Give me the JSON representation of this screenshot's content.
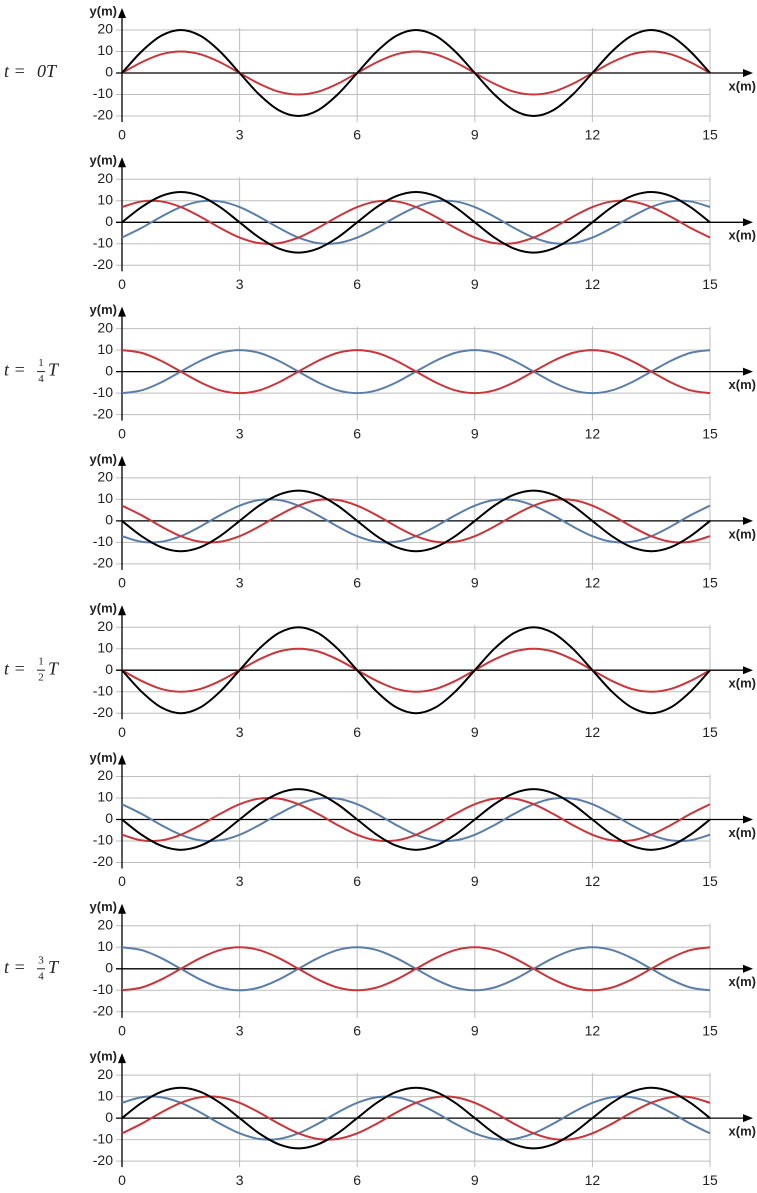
{
  "chart_data": [
    {
      "type": "line",
      "time_label": {
        "before": "t =",
        "after": "0T"
      },
      "xlabel": "x(m)",
      "ylabel": "y(m)",
      "xlim": [
        0,
        15
      ],
      "ylim": [
        -20,
        20
      ],
      "xticks": [
        0,
        3,
        6,
        9,
        12,
        15
      ],
      "yticks": [
        -20,
        -10,
        0,
        10,
        20
      ],
      "grid": true,
      "x": [
        0,
        0.5,
        1,
        1.5,
        2,
        2.5,
        3,
        3.5,
        4,
        4.5,
        5,
        5.5,
        6,
        6.5,
        7,
        7.5,
        8,
        8.5,
        9,
        9.5,
        10,
        10.5,
        11,
        11.5,
        12,
        12.5,
        13,
        13.5,
        14,
        14.5,
        15
      ],
      "series": [
        {
          "color": "#c8363b",
          "values": [
            0,
            5,
            8.7,
            10,
            8.7,
            5,
            0,
            -5,
            -8.7,
            -10,
            -8.7,
            -5,
            0,
            5,
            8.7,
            10,
            8.7,
            5,
            0,
            -5,
            -8.7,
            -10,
            -8.7,
            -5,
            0,
            5,
            8.7,
            10,
            8.7,
            5,
            0
          ]
        },
        {
          "color": "#000000",
          "values": [
            0,
            10,
            17.3,
            20,
            17.3,
            10,
            0,
            -10,
            -17.3,
            -20,
            -17.3,
            -10,
            0,
            10,
            17.3,
            20,
            17.3,
            10,
            0,
            -10,
            -17.3,
            -20,
            -17.3,
            -10,
            0,
            10,
            17.3,
            20,
            17.3,
            10,
            0
          ]
        }
      ]
    },
    {
      "type": "line",
      "xlabel": "x(m)",
      "ylabel": "y(m)",
      "xlim": [
        0,
        15
      ],
      "ylim": [
        -20,
        20
      ],
      "xticks": [
        0,
        3,
        6,
        9,
        12,
        15
      ],
      "yticks": [
        -20,
        -10,
        0,
        10,
        20
      ],
      "grid": true,
      "x": [
        0,
        0.5,
        1,
        1.5,
        2,
        2.5,
        3,
        3.5,
        4,
        4.5,
        5,
        5.5,
        6,
        6.5,
        7,
        7.5,
        8,
        8.5,
        9,
        9.5,
        10,
        10.5,
        11,
        11.5,
        12,
        12.5,
        13,
        13.5,
        14,
        14.5,
        15
      ],
      "series": [
        {
          "color": "#5b7ea8",
          "values": [
            -7.1,
            -2.6,
            2.6,
            7.1,
            9.7,
            9.7,
            7.1,
            2.6,
            -2.6,
            -7.1,
            -9.7,
            -9.7,
            -7.1,
            -2.6,
            2.6,
            7.1,
            9.7,
            9.7,
            7.1,
            2.6,
            -2.6,
            -7.1,
            -9.7,
            -9.7,
            -7.1,
            -2.6,
            2.6,
            7.1,
            9.7,
            9.7,
            7.1
          ]
        },
        {
          "color": "#c8363b",
          "values": [
            7.1,
            9.7,
            9.7,
            7.1,
            2.6,
            -2.6,
            -7.1,
            -9.7,
            -9.7,
            -7.1,
            -2.6,
            2.6,
            7.1,
            9.7,
            9.7,
            7.1,
            2.6,
            -2.6,
            -7.1,
            -9.7,
            -9.7,
            -7.1,
            -2.6,
            2.6,
            7.1,
            9.7,
            9.7,
            7.1,
            2.6,
            -2.6,
            -7.1
          ]
        },
        {
          "color": "#000000",
          "values": [
            0,
            7.1,
            12.2,
            14.1,
            12.2,
            7.1,
            0,
            -7.1,
            -12.2,
            -14.1,
            -12.2,
            -7.1,
            0,
            7.1,
            12.2,
            14.1,
            12.2,
            7.1,
            0,
            -7.1,
            -12.2,
            -14.1,
            -12.2,
            -7.1,
            0,
            7.1,
            12.2,
            14.1,
            12.2,
            7.1,
            0
          ]
        }
      ]
    },
    {
      "type": "line",
      "time_label": {
        "before": "t =",
        "numerator": "1",
        "denominator": "4",
        "after": "T"
      },
      "xlabel": "x(m)",
      "ylabel": "y(m)",
      "xlim": [
        0,
        15
      ],
      "ylim": [
        -20,
        20
      ],
      "xticks": [
        0,
        3,
        6,
        9,
        12,
        15
      ],
      "yticks": [
        -20,
        -10,
        0,
        10,
        20
      ],
      "grid": true,
      "x": [
        0,
        0.5,
        1,
        1.5,
        2,
        2.5,
        3,
        3.5,
        4,
        4.5,
        5,
        5.5,
        6,
        6.5,
        7,
        7.5,
        8,
        8.5,
        9,
        9.5,
        10,
        10.5,
        11,
        11.5,
        12,
        12.5,
        13,
        13.5,
        14,
        14.5,
        15
      ],
      "series": [
        {
          "color": "#5b7ea8",
          "values": [
            -10,
            -8.7,
            -5,
            0,
            5,
            8.7,
            10,
            8.7,
            5,
            0,
            -5,
            -8.7,
            -10,
            -8.7,
            -5,
            0,
            5,
            8.7,
            10,
            8.7,
            5,
            0,
            -5,
            -8.7,
            -10,
            -8.7,
            -5,
            0,
            5,
            8.7,
            10
          ]
        },
        {
          "color": "#c8363b",
          "values": [
            10,
            8.7,
            5,
            0,
            -5,
            -8.7,
            -10,
            -8.7,
            -5,
            0,
            5,
            8.7,
            10,
            8.7,
            5,
            0,
            -5,
            -8.7,
            -10,
            -8.7,
            -5,
            0,
            5,
            8.7,
            10,
            8.7,
            5,
            0,
            -5,
            -8.7,
            -10
          ]
        }
      ]
    },
    {
      "type": "line",
      "xlabel": "x(m)",
      "ylabel": "y(m)",
      "xlim": [
        0,
        15
      ],
      "ylim": [
        -20,
        20
      ],
      "xticks": [
        0,
        3,
        6,
        9,
        12,
        15
      ],
      "yticks": [
        -20,
        -10,
        0,
        10,
        20
      ],
      "grid": true,
      "x": [
        0,
        0.5,
        1,
        1.5,
        2,
        2.5,
        3,
        3.5,
        4,
        4.5,
        5,
        5.5,
        6,
        6.5,
        7,
        7.5,
        8,
        8.5,
        9,
        9.5,
        10,
        10.5,
        11,
        11.5,
        12,
        12.5,
        13,
        13.5,
        14,
        14.5,
        15
      ],
      "series": [
        {
          "color": "#5b7ea8",
          "values": [
            -7.1,
            -9.7,
            -9.7,
            -7.1,
            -2.6,
            2.6,
            7.1,
            9.7,
            9.7,
            7.1,
            2.6,
            -2.6,
            -7.1,
            -9.7,
            -9.7,
            -7.1,
            -2.6,
            2.6,
            7.1,
            9.7,
            9.7,
            7.1,
            2.6,
            -2.6,
            -7.1,
            -9.7,
            -9.7,
            -7.1,
            -2.6,
            2.6,
            7.1
          ]
        },
        {
          "color": "#c8363b",
          "values": [
            7.1,
            2.6,
            -2.6,
            -7.1,
            -9.7,
            -9.7,
            -7.1,
            -2.6,
            2.6,
            7.1,
            9.7,
            9.7,
            7.1,
            2.6,
            -2.6,
            -7.1,
            -9.7,
            -9.7,
            -7.1,
            -2.6,
            2.6,
            7.1,
            9.7,
            9.7,
            7.1,
            2.6,
            -2.6,
            -7.1,
            -9.7,
            -9.7,
            -7.1
          ]
        },
        {
          "color": "#000000",
          "values": [
            0,
            -7.1,
            -12.2,
            -14.1,
            -12.2,
            -7.1,
            0,
            7.1,
            12.2,
            14.1,
            12.2,
            7.1,
            0,
            -7.1,
            -12.2,
            -14.1,
            -12.2,
            -7.1,
            0,
            7.1,
            12.2,
            14.1,
            12.2,
            7.1,
            0,
            -7.1,
            -12.2,
            -14.1,
            -12.2,
            -7.1,
            0
          ]
        }
      ]
    },
    {
      "type": "line",
      "time_label": {
        "before": "t =",
        "numerator": "1",
        "denominator": "2",
        "after": "T"
      },
      "xlabel": "x(m)",
      "ylabel": "y(m)",
      "xlim": [
        0,
        15
      ],
      "ylim": [
        -20,
        20
      ],
      "xticks": [
        0,
        3,
        6,
        9,
        12,
        15
      ],
      "yticks": [
        -20,
        -10,
        0,
        10,
        20
      ],
      "grid": true,
      "x": [
        0,
        0.5,
        1,
        1.5,
        2,
        2.5,
        3,
        3.5,
        4,
        4.5,
        5,
        5.5,
        6,
        6.5,
        7,
        7.5,
        8,
        8.5,
        9,
        9.5,
        10,
        10.5,
        11,
        11.5,
        12,
        12.5,
        13,
        13.5,
        14,
        14.5,
        15
      ],
      "series": [
        {
          "color": "#c8363b",
          "values": [
            0,
            -5,
            -8.7,
            -10,
            -8.7,
            -5,
            0,
            5,
            8.7,
            10,
            8.7,
            5,
            0,
            -5,
            -8.7,
            -10,
            -8.7,
            -5,
            0,
            5,
            8.7,
            10,
            8.7,
            5,
            0,
            -5,
            -8.7,
            -10,
            -8.7,
            -5,
            0
          ]
        },
        {
          "color": "#000000",
          "values": [
            0,
            -10,
            -17.3,
            -20,
            -17.3,
            -10,
            0,
            10,
            17.3,
            20,
            17.3,
            10,
            0,
            -10,
            -17.3,
            -20,
            -17.3,
            -10,
            0,
            10,
            17.3,
            20,
            17.3,
            10,
            0,
            -10,
            -17.3,
            -20,
            -17.3,
            -10,
            0
          ]
        }
      ]
    },
    {
      "type": "line",
      "xlabel": "x(m)",
      "ylabel": "y(m)",
      "xlim": [
        0,
        15
      ],
      "ylim": [
        -20,
        20
      ],
      "xticks": [
        0,
        3,
        6,
        9,
        12,
        15
      ],
      "yticks": [
        -20,
        -10,
        0,
        10,
        20
      ],
      "grid": true,
      "x": [
        0,
        0.5,
        1,
        1.5,
        2,
        2.5,
        3,
        3.5,
        4,
        4.5,
        5,
        5.5,
        6,
        6.5,
        7,
        7.5,
        8,
        8.5,
        9,
        9.5,
        10,
        10.5,
        11,
        11.5,
        12,
        12.5,
        13,
        13.5,
        14,
        14.5,
        15
      ],
      "series": [
        {
          "color": "#5b7ea8",
          "values": [
            7.1,
            2.6,
            -2.6,
            -7.1,
            -9.7,
            -9.7,
            -7.1,
            -2.6,
            2.6,
            7.1,
            9.7,
            9.7,
            7.1,
            2.6,
            -2.6,
            -7.1,
            -9.7,
            -9.7,
            -7.1,
            -2.6,
            2.6,
            7.1,
            9.7,
            9.7,
            7.1,
            2.6,
            -2.6,
            -7.1,
            -9.7,
            -9.7,
            -7.1
          ]
        },
        {
          "color": "#c8363b",
          "values": [
            -7.1,
            -9.7,
            -9.7,
            -7.1,
            -2.6,
            2.6,
            7.1,
            9.7,
            9.7,
            7.1,
            2.6,
            -2.6,
            -7.1,
            -9.7,
            -9.7,
            -7.1,
            -2.6,
            2.6,
            7.1,
            9.7,
            9.7,
            7.1,
            2.6,
            -2.6,
            -7.1,
            -9.7,
            -9.7,
            -7.1,
            -2.6,
            2.6,
            7.1
          ]
        },
        {
          "color": "#000000",
          "values": [
            0,
            -7.1,
            -12.2,
            -14.1,
            -12.2,
            -7.1,
            0,
            7.1,
            12.2,
            14.1,
            12.2,
            7.1,
            0,
            -7.1,
            -12.2,
            -14.1,
            -12.2,
            -7.1,
            0,
            7.1,
            12.2,
            14.1,
            12.2,
            7.1,
            0,
            -7.1,
            -12.2,
            -14.1,
            -12.2,
            -7.1,
            0
          ]
        }
      ]
    },
    {
      "type": "line",
      "time_label": {
        "before": "t =",
        "numerator": "3",
        "denominator": "4",
        "after": "T"
      },
      "xlabel": "x(m)",
      "ylabel": "y(m)",
      "xlim": [
        0,
        15
      ],
      "ylim": [
        -20,
        20
      ],
      "xticks": [
        0,
        3,
        6,
        9,
        12,
        15
      ],
      "yticks": [
        -20,
        -10,
        0,
        10,
        20
      ],
      "grid": true,
      "x": [
        0,
        0.5,
        1,
        1.5,
        2,
        2.5,
        3,
        3.5,
        4,
        4.5,
        5,
        5.5,
        6,
        6.5,
        7,
        7.5,
        8,
        8.5,
        9,
        9.5,
        10,
        10.5,
        11,
        11.5,
        12,
        12.5,
        13,
        13.5,
        14,
        14.5,
        15
      ],
      "series": [
        {
          "color": "#5b7ea8",
          "values": [
            10,
            8.7,
            5,
            0,
            -5,
            -8.7,
            -10,
            -8.7,
            -5,
            0,
            5,
            8.7,
            10,
            8.7,
            5,
            0,
            -5,
            -8.7,
            -10,
            -8.7,
            -5,
            0,
            5,
            8.7,
            10,
            8.7,
            5,
            0,
            -5,
            -8.7,
            -10
          ]
        },
        {
          "color": "#c8363b",
          "values": [
            -10,
            -8.7,
            -5,
            0,
            5,
            8.7,
            10,
            8.7,
            5,
            0,
            -5,
            -8.7,
            -10,
            -8.7,
            -5,
            0,
            5,
            8.7,
            10,
            8.7,
            5,
            0,
            -5,
            -8.7,
            -10,
            -8.7,
            -5,
            0,
            5,
            8.7,
            10
          ]
        }
      ]
    },
    {
      "type": "line",
      "xlabel": "x(m)",
      "ylabel": "y(m)",
      "xlim": [
        0,
        15
      ],
      "ylim": [
        -20,
        20
      ],
      "xticks": [
        0,
        3,
        6,
        9,
        12,
        15
      ],
      "yticks": [
        -20,
        -10,
        0,
        10,
        20
      ],
      "grid": true,
      "x": [
        0,
        0.5,
        1,
        1.5,
        2,
        2.5,
        3,
        3.5,
        4,
        4.5,
        5,
        5.5,
        6,
        6.5,
        7,
        7.5,
        8,
        8.5,
        9,
        9.5,
        10,
        10.5,
        11,
        11.5,
        12,
        12.5,
        13,
        13.5,
        14,
        14.5,
        15
      ],
      "series": [
        {
          "color": "#5b7ea8",
          "values": [
            7.1,
            9.7,
            9.7,
            7.1,
            2.6,
            -2.6,
            -7.1,
            -9.7,
            -9.7,
            -7.1,
            -2.6,
            2.6,
            7.1,
            9.7,
            9.7,
            7.1,
            2.6,
            -2.6,
            -7.1,
            -9.7,
            -9.7,
            -7.1,
            -2.6,
            2.6,
            7.1,
            9.7,
            9.7,
            7.1,
            2.6,
            -2.6,
            -7.1
          ]
        },
        {
          "color": "#c8363b",
          "values": [
            -7.1,
            -2.6,
            2.6,
            7.1,
            9.7,
            9.7,
            7.1,
            2.6,
            -2.6,
            -7.1,
            -9.7,
            -9.7,
            -7.1,
            -2.6,
            2.6,
            7.1,
            9.7,
            9.7,
            7.1,
            2.6,
            -2.6,
            -7.1,
            -9.7,
            -9.7,
            -7.1,
            -2.6,
            2.6,
            7.1,
            9.7,
            9.7,
            7.1
          ]
        },
        {
          "color": "#000000",
          "values": [
            0,
            7.1,
            12.2,
            14.1,
            12.2,
            7.1,
            0,
            -7.1,
            -12.2,
            -14.1,
            -12.2,
            -7.1,
            0,
            7.1,
            12.2,
            14.1,
            12.2,
            7.1,
            0,
            -7.1,
            -12.2,
            -14.1,
            -12.2,
            -7.1,
            0,
            7.1,
            12.2,
            14.1,
            12.2,
            7.1,
            0
          ]
        }
      ]
    }
  ]
}
